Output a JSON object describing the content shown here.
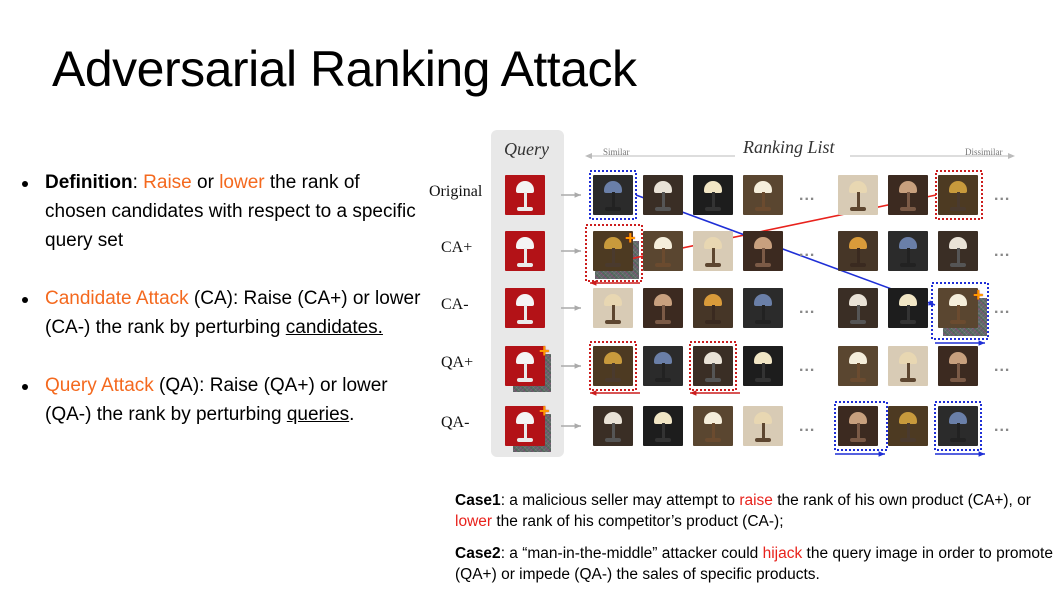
{
  "title": "Adversarial Ranking Attack",
  "bullets": [
    {
      "label": "Definition",
      "colon": ": ",
      "w1": "Raise",
      "or": " or ",
      "w2": "lower",
      "rest": " the rank of chosen candidates with respect to a specific query set"
    },
    {
      "label": "Candidate Attack",
      "tail": " (CA): Raise (CA+) or lower (CA-) the rank by perturbing ",
      "u": "candidates."
    },
    {
      "label": "Query Attack",
      "tail": " (QA): Raise (QA+) or lower (QA-) the rank by perturbing ",
      "u": "queries",
      "end": "."
    }
  ],
  "figure": {
    "query_header": "Query",
    "ranking_header": "Ranking List",
    "similar": "Similar",
    "dissimilar": "Dissimilar",
    "rows": [
      "Original",
      "CA+",
      "CA-",
      "QA+",
      "QA-"
    ],
    "ellipsis": "...",
    "plus": "+"
  },
  "case1": {
    "label": "Case1",
    "a": ": a malicious seller may attempt to ",
    "raise": "raise",
    "b": " the rank of his own product (CA+), or ",
    "lower": "lower",
    "c": " the rank of his competitor’s product (CA-);"
  },
  "case2": {
    "label": "Case2",
    "a": ": a “man-in-the-middle” attacker could ",
    "hijack": "hijack",
    "b": " the query image in order to promote (QA+) or impede (QA-) the sales of specific products."
  },
  "colors": {
    "orange": "#f4691e",
    "red": "#e8221c",
    "blue_box": "#1f2fd6",
    "red_box": "#cc1e1e"
  }
}
